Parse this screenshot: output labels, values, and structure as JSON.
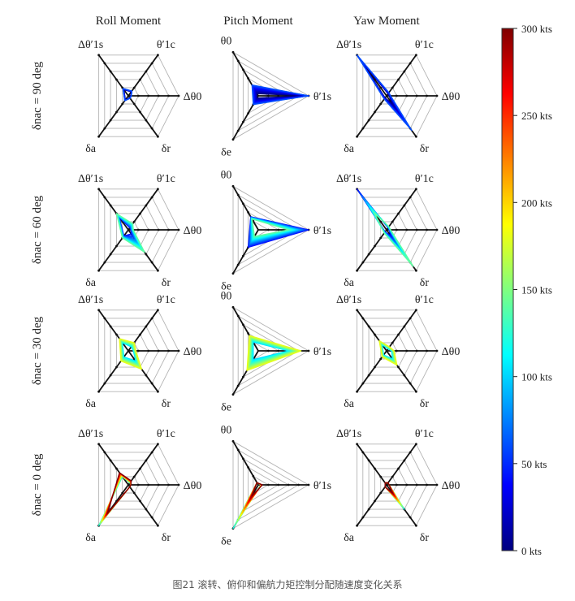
{
  "figure": {
    "caption": "图21 滚转、俯仰和偏航力矩控制分配随速度变化关系",
    "column_titles": [
      "Roll Moment",
      "Pitch Moment",
      "Yaw Moment"
    ],
    "row_labels": [
      "δnac = 90 deg",
      "δnac = 60 deg",
      "δnac = 30 deg",
      "δnac = 0 deg"
    ],
    "axis_labels": {
      "theta1c": "θ′1c",
      "dtheta0": "Δθ0",
      "deltar": "δr",
      "deltaa": "δa",
      "dtheta1s": "Δθ′1s",
      "theta0": "θ0",
      "theta1s": "θ′1s",
      "deltae": "δe"
    },
    "colorbar": {
      "label_unit": "kts",
      "ticks": [
        "0 kts",
        "50 kts",
        "100 kts",
        "150 kts",
        "200 kts",
        "250 kts",
        "300 kts"
      ],
      "min": 0,
      "max": 300,
      "colormap": "jet"
    }
  },
  "chart_data": {
    "type": "radar",
    "grid_levels": 5,
    "speed_range_kts": [
      0,
      300
    ],
    "panels": [
      {
        "row": 0,
        "col": 0,
        "moment": "Roll Moment",
        "nacelle_deg": 90,
        "axes": [
          "theta1c",
          "dtheta0",
          "deltar",
          "deltaa",
          "dtheta1s"
        ],
        "low_speed": [
          0.1,
          0.05,
          0.05,
          0.1,
          0.15
        ],
        "high_speed": [
          0.12,
          0.06,
          0.06,
          0.12,
          0.18
        ],
        "speed_kts": [
          0,
          60
        ]
      },
      {
        "row": 0,
        "col": 1,
        "moment": "Pitch Moment",
        "nacelle_deg": 90,
        "axes": [
          "theta0",
          "theta1s",
          "deltae"
        ],
        "low_speed": [
          0.05,
          1.0,
          0.05
        ],
        "high_speed": [
          0.25,
          1.0,
          0.2
        ],
        "speed_kts": [
          0,
          60
        ]
      },
      {
        "row": 0,
        "col": 2,
        "moment": "Yaw Moment",
        "nacelle_deg": 90,
        "axes": [
          "theta1c",
          "dtheta0",
          "deltar",
          "deltaa",
          "dtheta1s"
        ],
        "low_speed": [
          0.05,
          0.05,
          0.2,
          0.05,
          0.9
        ],
        "high_speed": [
          0.08,
          0.08,
          0.85,
          0.08,
          1.0
        ],
        "speed_kts": [
          0,
          60
        ]
      },
      {
        "row": 1,
        "col": 0,
        "moment": "Roll Moment",
        "nacelle_deg": 60,
        "axes": [
          "theta1c",
          "dtheta0",
          "deltar",
          "deltaa",
          "dtheta1s"
        ],
        "low_speed": [
          0.05,
          0.05,
          0.1,
          0.15,
          0.3
        ],
        "high_speed": [
          0.15,
          0.1,
          0.55,
          0.2,
          0.4
        ],
        "speed_kts": [
          40,
          140
        ]
      },
      {
        "row": 1,
        "col": 1,
        "moment": "Pitch Moment",
        "nacelle_deg": 60,
        "axes": [
          "theta0",
          "theta1s",
          "deltae"
        ],
        "low_speed": [
          0.3,
          1.0,
          0.4
        ],
        "high_speed": [
          0.25,
          0.6,
          0.15
        ],
        "speed_kts": [
          40,
          140
        ]
      },
      {
        "row": 1,
        "col": 2,
        "moment": "Yaw Moment",
        "nacelle_deg": 60,
        "axes": [
          "theta1c",
          "dtheta0",
          "deltar",
          "deltaa",
          "dtheta1s"
        ],
        "low_speed": [
          0.05,
          0.05,
          0.15,
          0.05,
          1.0
        ],
        "high_speed": [
          0.08,
          0.08,
          0.9,
          0.08,
          0.4
        ],
        "speed_kts": [
          40,
          140
        ]
      },
      {
        "row": 2,
        "col": 0,
        "moment": "Roll Moment",
        "nacelle_deg": 30,
        "axes": [
          "theta1c",
          "dtheta0",
          "deltar",
          "deltaa",
          "dtheta1s"
        ],
        "low_speed": [
          0.1,
          0.1,
          0.25,
          0.15,
          0.2
        ],
        "high_speed": [
          0.2,
          0.15,
          0.45,
          0.25,
          0.3
        ],
        "speed_kts": [
          100,
          180
        ]
      },
      {
        "row": 2,
        "col": 1,
        "moment": "Pitch Moment",
        "nacelle_deg": 30,
        "axes": [
          "theta0",
          "theta1s",
          "deltae"
        ],
        "low_speed": [
          0.2,
          0.6,
          0.2
        ],
        "high_speed": [
          0.35,
          0.85,
          0.45
        ],
        "speed_kts": [
          100,
          180
        ]
      },
      {
        "row": 2,
        "col": 2,
        "moment": "Yaw Moment",
        "nacelle_deg": 30,
        "axes": [
          "theta1c",
          "dtheta0",
          "deltar",
          "deltaa",
          "dtheta1s"
        ],
        "low_speed": [
          0.05,
          0.1,
          0.2,
          0.1,
          0.15
        ],
        "high_speed": [
          0.1,
          0.15,
          0.35,
          0.15,
          0.25
        ],
        "speed_kts": [
          100,
          180
        ]
      },
      {
        "row": 3,
        "col": 0,
        "moment": "Roll Moment",
        "nacelle_deg": 0,
        "axes": [
          "theta1c",
          "dtheta0",
          "deltar",
          "deltaa",
          "dtheta1s"
        ],
        "low_speed": [
          0.05,
          0.05,
          0.05,
          1.0,
          0.2
        ],
        "high_speed": [
          0.1,
          0.05,
          0.05,
          0.7,
          0.3
        ],
        "speed_kts": [
          120,
          300
        ]
      },
      {
        "row": 3,
        "col": 1,
        "moment": "Pitch Moment",
        "nacelle_deg": 0,
        "axes": [
          "theta0",
          "theta1s",
          "deltae"
        ],
        "low_speed": [
          0.05,
          0.05,
          1.0
        ],
        "high_speed": [
          0.05,
          0.08,
          0.25
        ],
        "speed_kts": [
          120,
          300
        ]
      },
      {
        "row": 3,
        "col": 2,
        "moment": "Yaw Moment",
        "nacelle_deg": 0,
        "axes": [
          "theta1c",
          "dtheta0",
          "deltar",
          "deltaa",
          "dtheta1s"
        ],
        "low_speed": [
          0.05,
          0.05,
          0.6,
          0.05,
          0.05
        ],
        "high_speed": [
          0.05,
          0.05,
          0.2,
          0.05,
          0.05
        ],
        "speed_kts": [
          120,
          300
        ]
      }
    ]
  }
}
